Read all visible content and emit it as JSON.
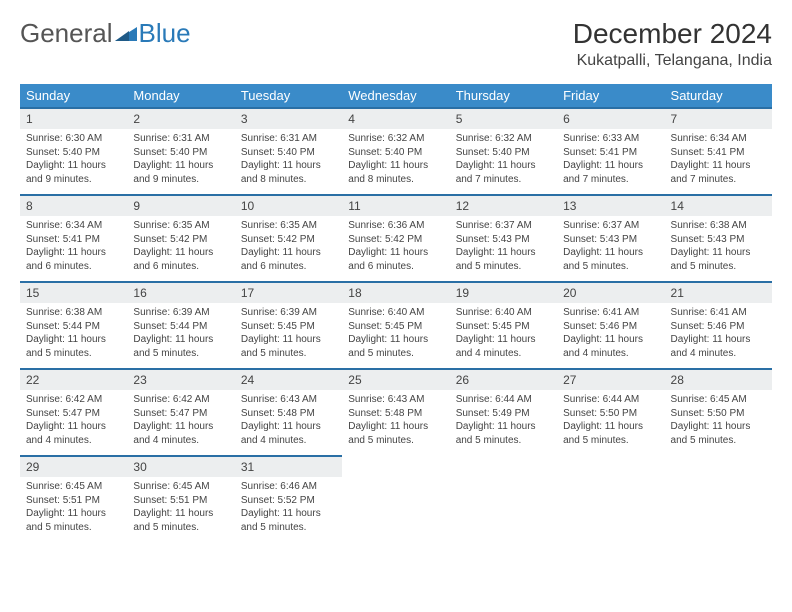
{
  "brand": {
    "word1": "General",
    "word2": "Blue"
  },
  "title": "December 2024",
  "location": "Kukatpalli, Telangana, India",
  "weekdays": [
    "Sunday",
    "Monday",
    "Tuesday",
    "Wednesday",
    "Thursday",
    "Friday",
    "Saturday"
  ],
  "colors": {
    "header_bg": "#3a8bc9",
    "header_text": "#ffffff",
    "row_divider": "#2a6fa5",
    "daynum_bg": "#eceeef",
    "body_text": "#444444",
    "brand_blue": "#2a7ab8"
  },
  "fonts": {
    "title_size_pt": 21,
    "location_size_pt": 12,
    "th_size_pt": 10,
    "cell_size_pt": 7.5
  },
  "weeks": [
    [
      {
        "n": "1",
        "sr": "Sunrise: 6:30 AM",
        "ss": "Sunset: 5:40 PM",
        "dl": "Daylight: 11 hours and 9 minutes."
      },
      {
        "n": "2",
        "sr": "Sunrise: 6:31 AM",
        "ss": "Sunset: 5:40 PM",
        "dl": "Daylight: 11 hours and 9 minutes."
      },
      {
        "n": "3",
        "sr": "Sunrise: 6:31 AM",
        "ss": "Sunset: 5:40 PM",
        "dl": "Daylight: 11 hours and 8 minutes."
      },
      {
        "n": "4",
        "sr": "Sunrise: 6:32 AM",
        "ss": "Sunset: 5:40 PM",
        "dl": "Daylight: 11 hours and 8 minutes."
      },
      {
        "n": "5",
        "sr": "Sunrise: 6:32 AM",
        "ss": "Sunset: 5:40 PM",
        "dl": "Daylight: 11 hours and 7 minutes."
      },
      {
        "n": "6",
        "sr": "Sunrise: 6:33 AM",
        "ss": "Sunset: 5:41 PM",
        "dl": "Daylight: 11 hours and 7 minutes."
      },
      {
        "n": "7",
        "sr": "Sunrise: 6:34 AM",
        "ss": "Sunset: 5:41 PM",
        "dl": "Daylight: 11 hours and 7 minutes."
      }
    ],
    [
      {
        "n": "8",
        "sr": "Sunrise: 6:34 AM",
        "ss": "Sunset: 5:41 PM",
        "dl": "Daylight: 11 hours and 6 minutes."
      },
      {
        "n": "9",
        "sr": "Sunrise: 6:35 AM",
        "ss": "Sunset: 5:42 PM",
        "dl": "Daylight: 11 hours and 6 minutes."
      },
      {
        "n": "10",
        "sr": "Sunrise: 6:35 AM",
        "ss": "Sunset: 5:42 PM",
        "dl": "Daylight: 11 hours and 6 minutes."
      },
      {
        "n": "11",
        "sr": "Sunrise: 6:36 AM",
        "ss": "Sunset: 5:42 PM",
        "dl": "Daylight: 11 hours and 6 minutes."
      },
      {
        "n": "12",
        "sr": "Sunrise: 6:37 AM",
        "ss": "Sunset: 5:43 PM",
        "dl": "Daylight: 11 hours and 5 minutes."
      },
      {
        "n": "13",
        "sr": "Sunrise: 6:37 AM",
        "ss": "Sunset: 5:43 PM",
        "dl": "Daylight: 11 hours and 5 minutes."
      },
      {
        "n": "14",
        "sr": "Sunrise: 6:38 AM",
        "ss": "Sunset: 5:43 PM",
        "dl": "Daylight: 11 hours and 5 minutes."
      }
    ],
    [
      {
        "n": "15",
        "sr": "Sunrise: 6:38 AM",
        "ss": "Sunset: 5:44 PM",
        "dl": "Daylight: 11 hours and 5 minutes."
      },
      {
        "n": "16",
        "sr": "Sunrise: 6:39 AM",
        "ss": "Sunset: 5:44 PM",
        "dl": "Daylight: 11 hours and 5 minutes."
      },
      {
        "n": "17",
        "sr": "Sunrise: 6:39 AM",
        "ss": "Sunset: 5:45 PM",
        "dl": "Daylight: 11 hours and 5 minutes."
      },
      {
        "n": "18",
        "sr": "Sunrise: 6:40 AM",
        "ss": "Sunset: 5:45 PM",
        "dl": "Daylight: 11 hours and 5 minutes."
      },
      {
        "n": "19",
        "sr": "Sunrise: 6:40 AM",
        "ss": "Sunset: 5:45 PM",
        "dl": "Daylight: 11 hours and 4 minutes."
      },
      {
        "n": "20",
        "sr": "Sunrise: 6:41 AM",
        "ss": "Sunset: 5:46 PM",
        "dl": "Daylight: 11 hours and 4 minutes."
      },
      {
        "n": "21",
        "sr": "Sunrise: 6:41 AM",
        "ss": "Sunset: 5:46 PM",
        "dl": "Daylight: 11 hours and 4 minutes."
      }
    ],
    [
      {
        "n": "22",
        "sr": "Sunrise: 6:42 AM",
        "ss": "Sunset: 5:47 PM",
        "dl": "Daylight: 11 hours and 4 minutes."
      },
      {
        "n": "23",
        "sr": "Sunrise: 6:42 AM",
        "ss": "Sunset: 5:47 PM",
        "dl": "Daylight: 11 hours and 4 minutes."
      },
      {
        "n": "24",
        "sr": "Sunrise: 6:43 AM",
        "ss": "Sunset: 5:48 PM",
        "dl": "Daylight: 11 hours and 4 minutes."
      },
      {
        "n": "25",
        "sr": "Sunrise: 6:43 AM",
        "ss": "Sunset: 5:48 PM",
        "dl": "Daylight: 11 hours and 5 minutes."
      },
      {
        "n": "26",
        "sr": "Sunrise: 6:44 AM",
        "ss": "Sunset: 5:49 PM",
        "dl": "Daylight: 11 hours and 5 minutes."
      },
      {
        "n": "27",
        "sr": "Sunrise: 6:44 AM",
        "ss": "Sunset: 5:50 PM",
        "dl": "Daylight: 11 hours and 5 minutes."
      },
      {
        "n": "28",
        "sr": "Sunrise: 6:45 AM",
        "ss": "Sunset: 5:50 PM",
        "dl": "Daylight: 11 hours and 5 minutes."
      }
    ],
    [
      {
        "n": "29",
        "sr": "Sunrise: 6:45 AM",
        "ss": "Sunset: 5:51 PM",
        "dl": "Daylight: 11 hours and 5 minutes."
      },
      {
        "n": "30",
        "sr": "Sunrise: 6:45 AM",
        "ss": "Sunset: 5:51 PM",
        "dl": "Daylight: 11 hours and 5 minutes."
      },
      {
        "n": "31",
        "sr": "Sunrise: 6:46 AM",
        "ss": "Sunset: 5:52 PM",
        "dl": "Daylight: 11 hours and 5 minutes."
      },
      {
        "empty": true
      },
      {
        "empty": true
      },
      {
        "empty": true
      },
      {
        "empty": true
      }
    ]
  ]
}
